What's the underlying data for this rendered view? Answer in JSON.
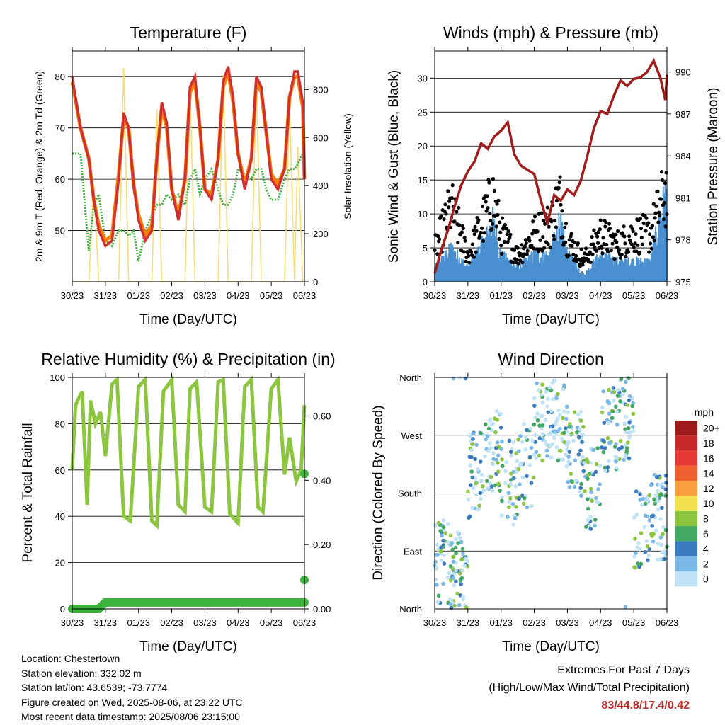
{
  "colors": {
    "temp_2m": "#d32f2f",
    "temp_9m": "#f57c00",
    "dewpoint": "#43b043",
    "insolation": "#f7dc6f",
    "wind": "#4a90d0",
    "gust": "#000000",
    "pressure": "#a21c1c",
    "humidity": "#8cc63f",
    "precip": "#3cb43c"
  },
  "x_ticks": [
    "30/23",
    "31/23",
    "01/23",
    "02/23",
    "03/23",
    "04/23",
    "05/23",
    "06/23"
  ],
  "info": {
    "location": "Location: Chestertown",
    "elevation": "Station elevation: 332.02 m",
    "latlon": "Station lat/lon: 43.6539; -73.7774",
    "created": "Figure created on Wed, 2025-08-06, at 23:22 UTC",
    "recent": "Most recent data timestamp: 2025/08/06 23:15:00"
  },
  "extremes": {
    "title": "Extremes For Past 7 Days",
    "subtitle": "(High/Low/Max Wind/Total Precipitation)",
    "values": "83/44.8/17.4/0.42"
  },
  "chart_data": [
    {
      "type": "line",
      "title": "Temperature (F)",
      "xlabel": "Time (Day/UTC)",
      "ylabel": "2m & 9m T (Red, Orange) & 2m Td (Green)",
      "ylim": [
        40,
        85
      ],
      "yticks": [
        50,
        60,
        70,
        80
      ],
      "y2label": "Solar Insolation (Yellow)",
      "y2lim": [
        0,
        960
      ],
      "y2ticks": [
        0,
        200,
        400,
        600,
        800
      ],
      "x": [
        0,
        0.25,
        0.5,
        0.65,
        0.8,
        1.0,
        1.2,
        1.4,
        1.55,
        1.7,
        1.85,
        2.0,
        2.2,
        2.4,
        2.55,
        2.7,
        2.85,
        3.0,
        3.2,
        3.4,
        3.55,
        3.7,
        3.85,
        4.0,
        4.2,
        4.4,
        4.55,
        4.7,
        4.85,
        5.0,
        5.2,
        5.4,
        5.55,
        5.7,
        5.85,
        6.0,
        6.2,
        6.4,
        6.55,
        6.7,
        6.8,
        6.95,
        7.0
      ],
      "series": [
        {
          "name": "2m T",
          "values": [
            80,
            70,
            64,
            56,
            50,
            47,
            48,
            60,
            73,
            70,
            59,
            52,
            48,
            50,
            64,
            75,
            71,
            58,
            52,
            60,
            78,
            80,
            70,
            58,
            56,
            64,
            79,
            82,
            76,
            65,
            58,
            64,
            80,
            78,
            69,
            60,
            58,
            62,
            76,
            81,
            81,
            75,
            60
          ]
        },
        {
          "name": "9m T",
          "values": [
            79,
            70,
            64,
            56,
            51,
            48,
            49,
            61,
            72,
            70,
            59,
            53,
            49,
            51,
            64,
            74,
            70,
            58,
            53,
            60,
            77,
            79,
            70,
            58,
            57,
            64,
            78,
            81,
            75,
            65,
            59,
            64,
            79,
            77,
            69,
            61,
            59,
            62,
            76,
            80,
            80,
            74,
            60
          ]
        },
        {
          "name": "2m Td",
          "values": [
            65,
            65,
            46,
            55,
            57,
            48,
            47,
            50,
            50,
            49,
            50,
            44,
            50,
            53,
            55,
            55,
            57,
            56,
            57,
            55,
            60,
            62,
            57,
            60,
            62,
            58,
            55,
            55,
            57,
            62,
            61,
            60,
            62,
            62,
            58,
            56,
            56,
            60,
            62,
            62,
            63,
            65,
            65
          ]
        },
        {
          "name": "Solar",
          "values": [
            0,
            0,
            0,
            400,
            0,
            0,
            0,
            0,
            890,
            0,
            0,
            0,
            0,
            0,
            720,
            0,
            0,
            0,
            0,
            0,
            820,
            0,
            0,
            0,
            0,
            0,
            860,
            0,
            0,
            0,
            0,
            0,
            820,
            0,
            0,
            0,
            0,
            0,
            740,
            0,
            560,
            0,
            0
          ]
        }
      ]
    },
    {
      "type": "line",
      "title": "Winds (mph) & Pressure (mb)",
      "xlabel": "Time (Day/UTC)",
      "ylabel": "Sonic Wind & Gust (Blue, Black)",
      "ylim": [
        0,
        34
      ],
      "yticks": [
        0,
        5,
        10,
        15,
        20,
        25,
        30
      ],
      "y2label": "Station Pressure (Maroon)",
      "y2lim": [
        975,
        991.5
      ],
      "y2ticks": [
        975,
        978,
        981,
        984,
        987,
        990
      ],
      "pressure": {
        "x": [
          0,
          0.2,
          0.4,
          0.6,
          0.8,
          1.0,
          1.2,
          1.4,
          1.6,
          1.8,
          2.0,
          2.2,
          2.4,
          2.6,
          2.8,
          3.0,
          3.2,
          3.4,
          3.6,
          3.8,
          4.0,
          4.2,
          4.4,
          4.6,
          4.8,
          5.0,
          5.2,
          5.4,
          5.6,
          5.8,
          6.0,
          6.2,
          6.4,
          6.6,
          6.8,
          6.95,
          7.0
        ],
        "values": [
          975.6,
          977.3,
          978.7,
          980.4,
          981.9,
          982.9,
          983.6,
          984.9,
          984.5,
          985.4,
          985.8,
          986.4,
          984.1,
          983.3,
          983.0,
          982.7,
          980.8,
          979.2,
          981.2,
          980.8,
          981.6,
          981.2,
          982.2,
          984.0,
          986.0,
          987.2,
          987.0,
          988.3,
          989.4,
          989.0,
          989.5,
          989.6,
          990.0,
          990.8,
          989.6,
          988.0,
          989.8
        ]
      },
      "wind": {
        "x": [
          0,
          0.5,
          1.0,
          1.5,
          1.75,
          2.0,
          2.5,
          3.0,
          3.5,
          3.75,
          4.0,
          4.5,
          5.0,
          5.5,
          6.0,
          6.5,
          6.95
        ],
        "values": [
          2,
          5,
          2,
          6,
          9,
          4,
          2,
          4,
          4,
          9,
          4,
          1,
          4,
          3,
          3,
          3,
          13
        ]
      },
      "gust": {
        "x": [
          0,
          0.5,
          1.0,
          1.5,
          1.75,
          2.0,
          2.5,
          3.0,
          3.5,
          3.75,
          4.0,
          4.5,
          5.0,
          5.5,
          6.0,
          6.5,
          6.95
        ],
        "values": [
          6,
          14,
          5,
          12,
          16,
          9,
          5,
          9,
          11,
          16,
          8,
          4,
          9,
          7,
          9,
          9,
          17
        ]
      }
    },
    {
      "type": "line",
      "title": "Relative Humidity (%) & Precipitation (in)",
      "xlabel": "Time (Day/UTC)",
      "ylabel": "Percent & Total Rainfall",
      "ylim": [
        0,
        100
      ],
      "yticks": [
        0,
        20,
        40,
        60,
        80,
        100
      ],
      "y2lim": [
        0,
        0.72
      ],
      "y2ticks": [
        "0.00",
        "0.20",
        "0.40",
        "0.60"
      ],
      "humidity": {
        "x": [
          0,
          0.1,
          0.3,
          0.45,
          0.55,
          0.7,
          0.85,
          1.0,
          1.2,
          1.35,
          1.55,
          1.75,
          2.0,
          2.2,
          2.4,
          2.55,
          2.75,
          3.0,
          3.2,
          3.4,
          3.55,
          3.75,
          4.0,
          4.2,
          4.4,
          4.55,
          4.75,
          5.0,
          5.2,
          5.4,
          5.6,
          5.75,
          6.0,
          6.2,
          6.4,
          6.55,
          6.75,
          6.9,
          7.0
        ],
        "values": [
          60,
          88,
          94,
          45,
          90,
          80,
          85,
          66,
          97,
          99,
          40,
          38,
          96,
          99,
          38,
          36,
          94,
          99,
          45,
          42,
          95,
          98,
          44,
          42,
          98,
          99,
          41,
          37,
          96,
          99,
          44,
          42,
          95,
          99,
          58,
          74,
          55,
          60,
          88
        ]
      },
      "precip": {
        "x": [
          0,
          0.8,
          1.0,
          7.0
        ],
        "values": [
          0.0,
          0.0,
          0.02,
          0.02
        ]
      },
      "precip_points": [
        {
          "x": 7.0,
          "y": 0.42
        },
        {
          "x": 7.0,
          "y": 0.09
        }
      ]
    },
    {
      "type": "scatter",
      "title": "Wind Direction",
      "xlabel": "Time (Day/UTC)",
      "ylabel": "Direction (Colored By Speed)",
      "yticks": [
        "North",
        "East",
        "South",
        "West",
        "North"
      ],
      "legend": {
        "title": "mph",
        "labels": [
          "20+",
          "18",
          "16",
          "14",
          "12",
          "10",
          "8",
          "6",
          "4",
          "2",
          "0"
        ],
        "colors": [
          "#9e1a1a",
          "#c62828",
          "#e53935",
          "#f06030",
          "#f8a040",
          "#f2e050",
          "#8cc63f",
          "#43a862",
          "#3a7bbf",
          "#7ab8e8",
          "#bfe2f7"
        ]
      }
    }
  ]
}
